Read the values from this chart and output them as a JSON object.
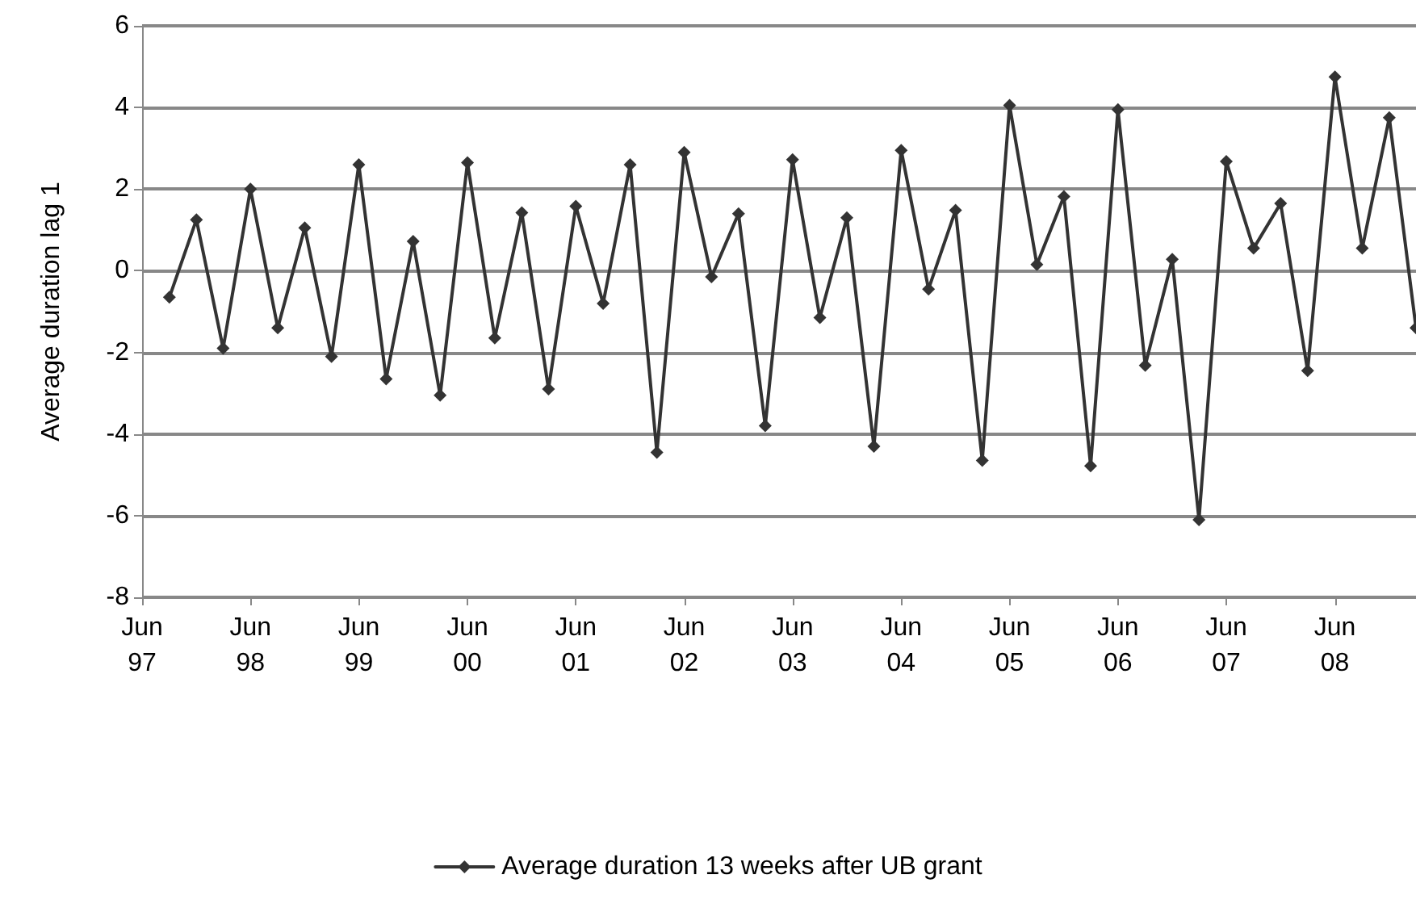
{
  "chart_data": {
    "type": "line",
    "ylabel": "Average duration lag 1",
    "x": [
      "1997-09",
      "1997-12",
      "1998-03",
      "1998-06",
      "1998-09",
      "1998-12",
      "1999-03",
      "1999-06",
      "1999-09",
      "1999-12",
      "2000-03",
      "2000-06",
      "2000-09",
      "2000-12",
      "2001-03",
      "2001-06",
      "2001-09",
      "2001-12",
      "2002-03",
      "2002-06",
      "2002-09",
      "2002-12",
      "2003-03",
      "2003-06",
      "2003-09",
      "2003-12",
      "2004-03",
      "2004-06",
      "2004-09",
      "2004-12",
      "2005-03",
      "2005-06",
      "2005-09",
      "2005-12",
      "2006-03",
      "2006-06",
      "2006-09",
      "2006-12",
      "2007-03",
      "2007-06",
      "2007-09",
      "2007-12",
      "2008-03",
      "2008-06",
      "2008-09",
      "2008-12",
      "2009-03"
    ],
    "series": [
      {
        "name": "Average duration 13 weeks after UB grant",
        "color": "#333333",
        "values": [
          -0.65,
          1.25,
          -1.9,
          2.0,
          -1.4,
          1.05,
          -2.1,
          2.6,
          -2.65,
          0.72,
          -3.05,
          2.65,
          -1.65,
          1.42,
          -2.9,
          1.58,
          -0.8,
          2.6,
          -4.45,
          2.9,
          -0.15,
          1.4,
          -3.8,
          2.72,
          -1.15,
          1.3,
          -4.3,
          2.95,
          -0.45,
          1.48,
          -4.65,
          4.05,
          0.15,
          1.82,
          -4.78,
          3.95,
          -2.32,
          0.28,
          -6.1,
          2.68,
          0.55,
          1.65,
          -2.45,
          4.75,
          0.55,
          3.75,
          -1.4
        ]
      }
    ],
    "xlim": [
      "1997-06",
      "2009-03"
    ],
    "xticks": [
      {
        "value": "1997-06",
        "label": "Jun 97"
      },
      {
        "value": "1998-06",
        "label": "Jun 98"
      },
      {
        "value": "1999-06",
        "label": "Jun 99"
      },
      {
        "value": "2000-06",
        "label": "Jun 00"
      },
      {
        "value": "2001-06",
        "label": "Jun 01"
      },
      {
        "value": "2002-06",
        "label": "Jun 02"
      },
      {
        "value": "2003-06",
        "label": "Jun 03"
      },
      {
        "value": "2004-06",
        "label": "Jun 04"
      },
      {
        "value": "2005-06",
        "label": "Jun 05"
      },
      {
        "value": "2006-06",
        "label": "Jun 06"
      },
      {
        "value": "2007-06",
        "label": "Jun 07"
      },
      {
        "value": "2008-06",
        "label": "Jun 08"
      }
    ],
    "ylim": [
      -8,
      6
    ],
    "yticks": [
      -8,
      -6,
      -4,
      -2,
      0,
      2,
      4,
      6
    ],
    "grid": "y",
    "legend": "bottom",
    "marker": "diamond",
    "line_style": "solid"
  }
}
